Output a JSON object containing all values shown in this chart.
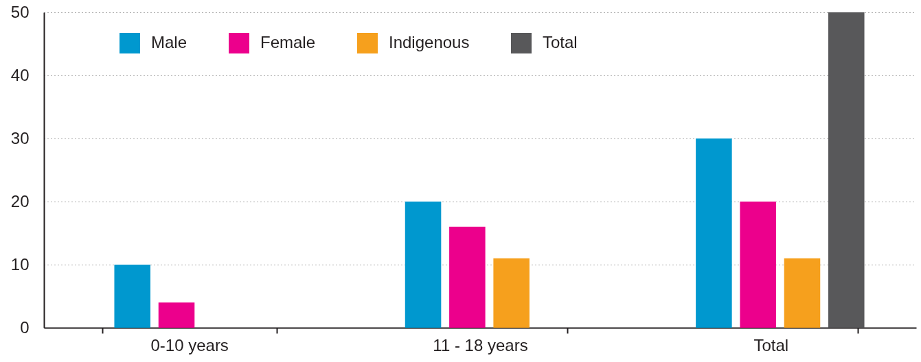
{
  "chart_data": {
    "type": "bar",
    "categories": [
      "0-10 years",
      "11 - 18 years",
      "Total"
    ],
    "series": [
      {
        "name": "Male",
        "color": "#0098cf",
        "values": [
          10,
          20,
          30
        ]
      },
      {
        "name": "Female",
        "color": "#ec008c",
        "values": [
          4,
          16,
          20
        ]
      },
      {
        "name": "Indigenous",
        "color": "#f6a01d",
        "values": [
          null,
          11,
          11
        ]
      },
      {
        "name": "Total",
        "color": "#58585a",
        "values": [
          null,
          null,
          50
        ]
      }
    ],
    "ylim": [
      0,
      50
    ],
    "yticks": [
      0,
      10,
      20,
      30,
      40,
      50
    ],
    "grid": "y",
    "legend": "top left"
  }
}
